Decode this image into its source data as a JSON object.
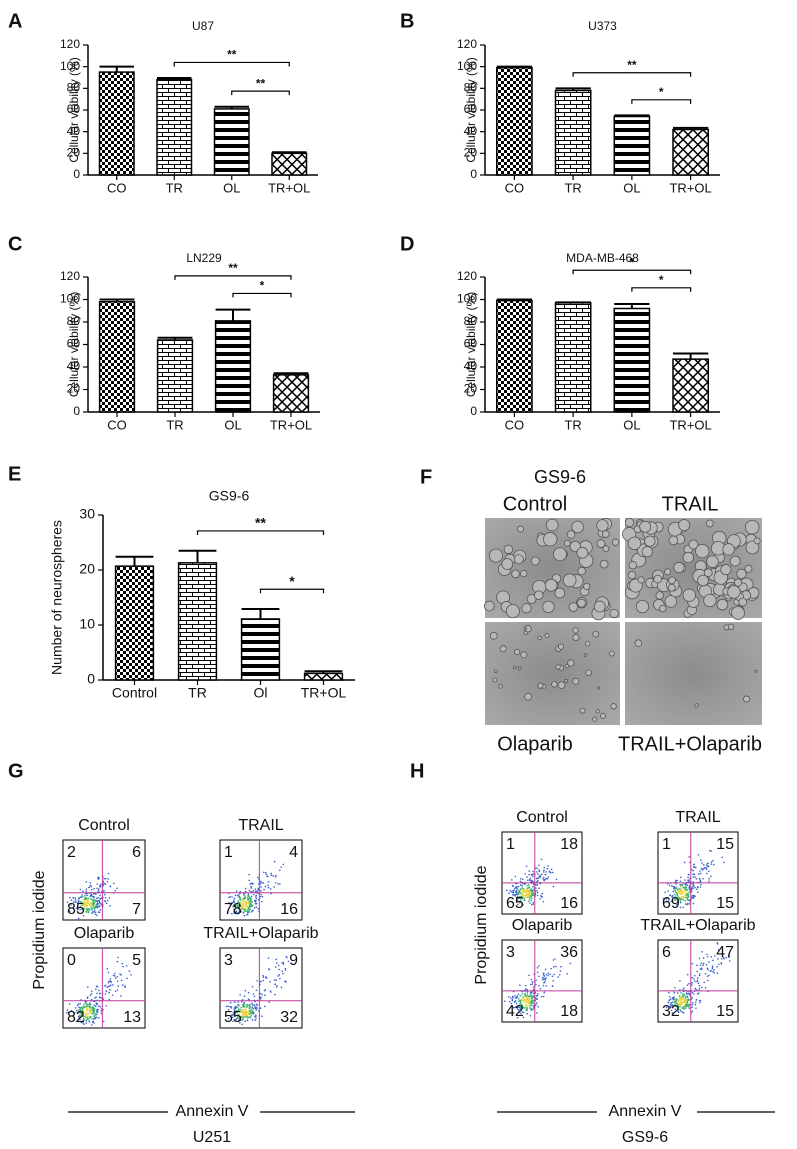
{
  "chart_data": [
    {
      "type": "bar",
      "panel": "A",
      "title": "U87",
      "y_label": "Cellular viability (%)",
      "categories": [
        "CO",
        "TR",
        "OL",
        "TR+OL"
      ],
      "values": [
        95,
        88,
        61,
        20
      ],
      "errors": [
        5,
        1.5,
        2,
        1
      ],
      "ylim": [
        0,
        120
      ],
      "yticks": [
        0,
        20,
        40,
        60,
        80,
        100,
        120
      ],
      "significance": [
        {
          "from": "TR",
          "to": "TR+OL",
          "label": "**"
        },
        {
          "from": "OL",
          "to": "TR+OL",
          "label": "**"
        }
      ]
    },
    {
      "type": "bar",
      "panel": "B",
      "title": "U373",
      "y_label": "Cellular viability (%)",
      "categories": [
        "CO",
        "TR",
        "OL",
        "TR+OL"
      ],
      "values": [
        99,
        78,
        54,
        42
      ],
      "errors": [
        1,
        2,
        1,
        1.5
      ],
      "ylim": [
        0,
        120
      ],
      "yticks": [
        0,
        20,
        40,
        60,
        80,
        100,
        120
      ],
      "significance": [
        {
          "from": "TR",
          "to": "TR+OL",
          "label": "**"
        },
        {
          "from": "OL",
          "to": "TR+OL",
          "label": "*"
        }
      ]
    },
    {
      "type": "bar",
      "panel": "C",
      "title": "LN229",
      "y_label": "Cellular viability (%)",
      "categories": [
        "CO",
        "TR",
        "OL",
        "TR+OL"
      ],
      "values": [
        98,
        64,
        81,
        33
      ],
      "errors": [
        2,
        2,
        10,
        1.5
      ],
      "ylim": [
        0,
        120
      ],
      "yticks": [
        0,
        20,
        40,
        60,
        80,
        100,
        120
      ],
      "significance": [
        {
          "from": "TR",
          "to": "TR+OL",
          "label": "**"
        },
        {
          "from": "OL",
          "to": "TR+OL",
          "label": "*"
        }
      ]
    },
    {
      "type": "bar",
      "panel": "D",
      "title": "MDA-MB-468",
      "y_label": "Cellular viability (%)",
      "categories": [
        "CO",
        "TR",
        "OL",
        "TR+OL"
      ],
      "values": [
        99,
        97,
        92,
        47
      ],
      "errors": [
        1,
        0.5,
        4,
        5
      ],
      "ylim": [
        0,
        120
      ],
      "yticks": [
        0,
        20,
        40,
        60,
        80,
        100,
        120
      ],
      "significance": [
        {
          "from": "TR",
          "to": "TR+OL",
          "label": "*"
        },
        {
          "from": "OL",
          "to": "TR+OL",
          "label": "*"
        }
      ]
    },
    {
      "type": "bar",
      "panel": "E",
      "title": "GS9-6",
      "y_label": "Number of neurospheres",
      "categories": [
        "Control",
        "TR",
        "Ol",
        "TR+OL"
      ],
      "values": [
        20.7,
        21.3,
        11.1,
        1.2
      ],
      "errors": [
        1.7,
        2.2,
        1.8,
        0.4
      ],
      "ylim": [
        0,
        30
      ],
      "yticks": [
        0,
        10,
        20,
        30
      ],
      "significance": [
        {
          "from": "TR",
          "to": "TR+OL",
          "label": "**"
        },
        {
          "from": "Ol",
          "to": "TR+OL",
          "label": "*"
        }
      ]
    }
  ],
  "micrographs": {
    "panel": "F",
    "title": "GS9-6",
    "labels": [
      "Control",
      "TRAIL",
      "Olaparib",
      "TRAIL+Olaparib"
    ]
  },
  "flow": [
    {
      "panel": "G",
      "x_label": "Annexin V",
      "y_label": "Propidium iodide",
      "cell_line": "U251",
      "plots": [
        {
          "label": "Control",
          "quadrants": [
            2,
            6,
            85,
            7
          ]
        },
        {
          "label": "TRAIL",
          "quadrants": [
            1,
            4,
            78,
            16
          ]
        },
        {
          "label": "Olaparib",
          "quadrants": [
            0,
            5,
            82,
            13
          ]
        },
        {
          "label": "TRAIL+Olaparib",
          "quadrants": [
            3,
            9,
            55,
            32
          ]
        }
      ]
    },
    {
      "panel": "H",
      "x_label": "Annexin V",
      "y_label": "Propidium iodide",
      "cell_line": "GS9-6",
      "plots": [
        {
          "label": "Control",
          "quadrants": [
            1,
            18,
            65,
            16
          ]
        },
        {
          "label": "TRAIL",
          "quadrants": [
            1,
            15,
            69,
            15
          ]
        },
        {
          "label": "Olaparib",
          "quadrants": [
            3,
            36,
            42,
            18
          ]
        },
        {
          "label": "TRAIL+Olaparib",
          "quadrants": [
            6,
            47,
            32,
            15
          ]
        }
      ]
    }
  ]
}
